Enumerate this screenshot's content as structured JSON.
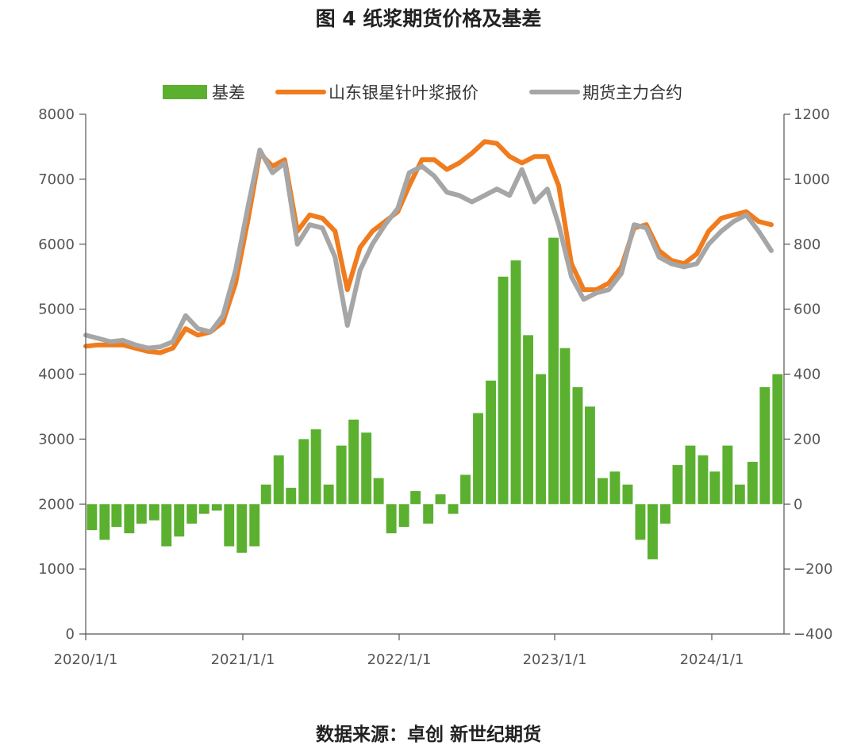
{
  "title": "图 4 纸浆期货价格及基差",
  "source": "数据来源：卓创  新世纪期货",
  "colors": {
    "basis": "#5bb030",
    "spot": "#f07c1e",
    "futures": "#a6a6a6",
    "axis": "#555555"
  },
  "chart_data": {
    "type": "bar+line",
    "grid": false,
    "legend_position": "top",
    "x_ticks": [
      "2020/1/1",
      "2021/1/1",
      "2022/1/1",
      "2023/1/1",
      "2024/1/1"
    ],
    "y_left": {
      "ticks": [
        0,
        1000,
        2000,
        3000,
        4000,
        5000,
        6000,
        7000,
        8000
      ],
      "range": [
        0,
        8000
      ]
    },
    "y_right": {
      "ticks": [
        "1200",
        "1000",
        "800",
        "600",
        "400",
        "200",
        "0",
        "−200",
        "−400"
      ],
      "range": [
        -400,
        1200
      ]
    },
    "series": [
      {
        "name": "基差",
        "type": "bar",
        "axis": "right",
        "points": [
          [
            "2020-01-01",
            -80
          ],
          [
            "2020-02-01",
            -110
          ],
          [
            "2020-03-01",
            -70
          ],
          [
            "2020-04-01",
            -90
          ],
          [
            "2020-05-01",
            -60
          ],
          [
            "2020-06-01",
            -50
          ],
          [
            "2020-07-01",
            -130
          ],
          [
            "2020-08-01",
            -100
          ],
          [
            "2020-09-01",
            -60
          ],
          [
            "2020-10-01",
            -30
          ],
          [
            "2020-11-01",
            -20
          ],
          [
            "2020-12-01",
            -130
          ],
          [
            "2021-01-01",
            -150
          ],
          [
            "2021-02-01",
            -130
          ],
          [
            "2021-03-01",
            60
          ],
          [
            "2021-04-01",
            150
          ],
          [
            "2021-05-01",
            50
          ],
          [
            "2021-06-01",
            200
          ],
          [
            "2021-07-01",
            230
          ],
          [
            "2021-08-01",
            60
          ],
          [
            "2021-09-01",
            180
          ],
          [
            "2021-10-01",
            260
          ],
          [
            "2021-11-01",
            220
          ],
          [
            "2021-12-01",
            80
          ],
          [
            "2022-01-01",
            -90
          ],
          [
            "2022-02-01",
            -70
          ],
          [
            "2022-03-01",
            40
          ],
          [
            "2022-04-01",
            -60
          ],
          [
            "2022-05-01",
            30
          ],
          [
            "2022-06-01",
            -30
          ],
          [
            "2022-07-01",
            90
          ],
          [
            "2022-08-01",
            280
          ],
          [
            "2022-09-01",
            380
          ],
          [
            "2022-10-01",
            700
          ],
          [
            "2022-11-01",
            750
          ],
          [
            "2022-12-01",
            520
          ],
          [
            "2023-01-01",
            400
          ],
          [
            "2023-02-01",
            820
          ],
          [
            "2023-03-01",
            480
          ],
          [
            "2023-04-01",
            360
          ],
          [
            "2023-05-01",
            300
          ],
          [
            "2023-06-01",
            80
          ],
          [
            "2023-07-01",
            100
          ],
          [
            "2023-08-01",
            60
          ],
          [
            "2023-09-01",
            -110
          ],
          [
            "2023-10-01",
            -170
          ],
          [
            "2023-11-01",
            -60
          ],
          [
            "2023-12-01",
            120
          ],
          [
            "2024-01-01",
            180
          ],
          [
            "2024-02-01",
            150
          ],
          [
            "2024-03-01",
            100
          ],
          [
            "2024-04-01",
            180
          ],
          [
            "2024-05-01",
            60
          ],
          [
            "2024-06-01",
            130
          ],
          [
            "2024-07-01",
            360
          ],
          [
            "2024-08-01",
            400
          ]
        ]
      },
      {
        "name": "山东银星针叶浆报价",
        "type": "line",
        "axis": "left",
        "points": [
          [
            "2020-01-01",
            4430
          ],
          [
            "2020-02-01",
            4450
          ],
          [
            "2020-03-01",
            4450
          ],
          [
            "2020-04-01",
            4450
          ],
          [
            "2020-05-01",
            4400
          ],
          [
            "2020-06-01",
            4350
          ],
          [
            "2020-07-01",
            4330
          ],
          [
            "2020-08-01",
            4400
          ],
          [
            "2020-09-01",
            4700
          ],
          [
            "2020-10-01",
            4600
          ],
          [
            "2020-11-01",
            4650
          ],
          [
            "2020-12-01",
            4800
          ],
          [
            "2021-01-01",
            5400
          ],
          [
            "2021-02-01",
            6400
          ],
          [
            "2021-03-01",
            7400
          ],
          [
            "2021-04-01",
            7200
          ],
          [
            "2021-05-01",
            7300
          ],
          [
            "2021-06-01",
            6200
          ],
          [
            "2021-07-01",
            6450
          ],
          [
            "2021-08-01",
            6400
          ],
          [
            "2021-09-01",
            6200
          ],
          [
            "2021-10-01",
            5300
          ],
          [
            "2021-11-01",
            5950
          ],
          [
            "2021-12-01",
            6200
          ],
          [
            "2022-01-01",
            6350
          ],
          [
            "2022-02-01",
            6500
          ],
          [
            "2022-03-01",
            6900
          ],
          [
            "2022-04-01",
            7300
          ],
          [
            "2022-05-01",
            7300
          ],
          [
            "2022-06-01",
            7150
          ],
          [
            "2022-07-01",
            7250
          ],
          [
            "2022-08-01",
            7400
          ],
          [
            "2022-09-01",
            7580
          ],
          [
            "2022-10-01",
            7550
          ],
          [
            "2022-11-01",
            7350
          ],
          [
            "2022-12-01",
            7250
          ],
          [
            "2023-01-01",
            7350
          ],
          [
            "2023-02-01",
            7350
          ],
          [
            "2023-03-01",
            6900
          ],
          [
            "2023-04-01",
            5700
          ],
          [
            "2023-05-01",
            5300
          ],
          [
            "2023-06-01",
            5300
          ],
          [
            "2023-07-01",
            5400
          ],
          [
            "2023-08-01",
            5650
          ],
          [
            "2023-09-01",
            6250
          ],
          [
            "2023-10-01",
            6300
          ],
          [
            "2023-11-01",
            5900
          ],
          [
            "2023-12-01",
            5750
          ],
          [
            "2024-01-01",
            5700
          ],
          [
            "2024-02-01",
            5850
          ],
          [
            "2024-03-01",
            6200
          ],
          [
            "2024-04-01",
            6400
          ],
          [
            "2024-05-01",
            6450
          ],
          [
            "2024-06-01",
            6500
          ],
          [
            "2024-07-01",
            6350
          ],
          [
            "2024-08-01",
            6300
          ]
        ]
      },
      {
        "name": "期货主力合约",
        "type": "line",
        "axis": "left",
        "points": [
          [
            "2020-01-01",
            4600
          ],
          [
            "2020-02-01",
            4550
          ],
          [
            "2020-03-01",
            4500
          ],
          [
            "2020-04-01",
            4520
          ],
          [
            "2020-05-01",
            4450
          ],
          [
            "2020-06-01",
            4400
          ],
          [
            "2020-07-01",
            4420
          ],
          [
            "2020-08-01",
            4500
          ],
          [
            "2020-09-01",
            4900
          ],
          [
            "2020-10-01",
            4700
          ],
          [
            "2020-11-01",
            4650
          ],
          [
            "2020-12-01",
            4900
          ],
          [
            "2021-01-01",
            5600
          ],
          [
            "2021-02-01",
            6600
          ],
          [
            "2021-03-01",
            7450
          ],
          [
            "2021-04-01",
            7100
          ],
          [
            "2021-05-01",
            7250
          ],
          [
            "2021-06-01",
            6000
          ],
          [
            "2021-07-01",
            6300
          ],
          [
            "2021-08-01",
            6250
          ],
          [
            "2021-09-01",
            5800
          ],
          [
            "2021-10-01",
            4750
          ],
          [
            "2021-11-01",
            5600
          ],
          [
            "2021-12-01",
            6000
          ],
          [
            "2022-01-01",
            6300
          ],
          [
            "2022-02-01",
            6550
          ],
          [
            "2022-03-01",
            7100
          ],
          [
            "2022-04-01",
            7200
          ],
          [
            "2022-05-01",
            7050
          ],
          [
            "2022-06-01",
            6800
          ],
          [
            "2022-07-01",
            6750
          ],
          [
            "2022-08-01",
            6650
          ],
          [
            "2022-09-01",
            6750
          ],
          [
            "2022-10-01",
            6850
          ],
          [
            "2022-11-01",
            6750
          ],
          [
            "2022-12-01",
            7150
          ],
          [
            "2023-01-01",
            6650
          ],
          [
            "2023-02-01",
            6850
          ],
          [
            "2023-03-01",
            6300
          ],
          [
            "2023-04-01",
            5500
          ],
          [
            "2023-05-01",
            5150
          ],
          [
            "2023-06-01",
            5250
          ],
          [
            "2023-07-01",
            5300
          ],
          [
            "2023-08-01",
            5550
          ],
          [
            "2023-09-01",
            6300
          ],
          [
            "2023-10-01",
            6250
          ],
          [
            "2023-11-01",
            5800
          ],
          [
            "2023-12-01",
            5700
          ],
          [
            "2024-01-01",
            5650
          ],
          [
            "2024-02-01",
            5700
          ],
          [
            "2024-03-01",
            6000
          ],
          [
            "2024-04-01",
            6200
          ],
          [
            "2024-05-01",
            6350
          ],
          [
            "2024-06-01",
            6450
          ],
          [
            "2024-07-01",
            6200
          ],
          [
            "2024-08-01",
            5900
          ]
        ]
      }
    ]
  }
}
